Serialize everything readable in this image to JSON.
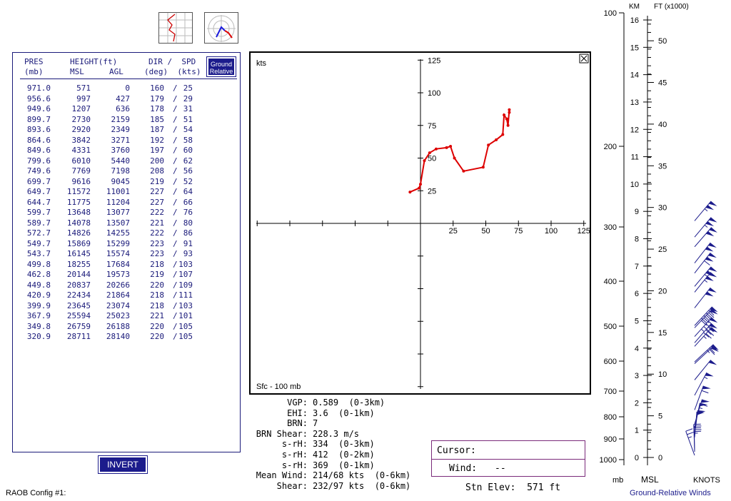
{
  "app": {
    "config_label": "RAOB Config #1:"
  },
  "toolbar": {
    "skewt_icon": "skewt-chart-icon",
    "hodograph_icon": "hodograph-icon"
  },
  "table": {
    "headers": {
      "pres": "PRES",
      "pres_unit": "(mb)",
      "height": "HEIGHT(ft)",
      "msl": "MSL",
      "agl": "AGL",
      "dir_spd": "DIR /  SPD",
      "dir_spd_unit": "(deg)  (kts)"
    },
    "ground_relative_button": "Ground Relative",
    "rows": [
      [
        "971.0",
        "571",
        "0",
        "160",
        "25"
      ],
      [
        "956.6",
        "997",
        "427",
        "179",
        "29"
      ],
      [
        "949.6",
        "1207",
        "636",
        "178",
        "31"
      ],
      [
        "899.7",
        "2730",
        "2159",
        "185",
        "51"
      ],
      [
        "893.6",
        "2920",
        "2349",
        "187",
        "54"
      ],
      [
        "864.6",
        "3842",
        "3271",
        "192",
        "58"
      ],
      [
        "849.6",
        "4331",
        "3760",
        "197",
        "60"
      ],
      [
        "799.6",
        "6010",
        "5440",
        "200",
        "62"
      ],
      [
        "749.6",
        "7769",
        "7198",
        "208",
        "56"
      ],
      [
        "699.7",
        "9616",
        "9045",
        "219",
        "52"
      ],
      [
        "649.7",
        "11572",
        "11001",
        "227",
        "64"
      ],
      [
        "644.7",
        "11775",
        "11204",
        "227",
        "66"
      ],
      [
        "599.7",
        "13648",
        "13077",
        "222",
        "76"
      ],
      [
        "589.7",
        "14078",
        "13507",
        "221",
        "80"
      ],
      [
        "572.7",
        "14826",
        "14255",
        "222",
        "86"
      ],
      [
        "549.7",
        "15869",
        "15299",
        "223",
        "91"
      ],
      [
        "543.7",
        "16145",
        "15574",
        "223",
        "93"
      ],
      [
        "499.8",
        "18255",
        "17684",
        "218",
        "103"
      ],
      [
        "462.8",
        "20144",
        "19573",
        "219",
        "107"
      ],
      [
        "449.8",
        "20837",
        "20266",
        "220",
        "109"
      ],
      [
        "420.9",
        "22434",
        "21864",
        "218",
        "111"
      ],
      [
        "399.9",
        "23645",
        "23074",
        "218",
        "103"
      ],
      [
        "367.9",
        "25594",
        "25023",
        "221",
        "101"
      ],
      [
        "349.8",
        "26759",
        "26188",
        "220",
        "105"
      ],
      [
        "320.9",
        "28711",
        "28140",
        "220",
        "105"
      ]
    ],
    "invert_button": "INVERT"
  },
  "hodograph": {
    "unit_label": "kts",
    "range_label": "Sfc - 100 mb",
    "ticks": [
      "25",
      "50",
      "75",
      "100",
      "125"
    ],
    "line_color": "#dd0000",
    "trace": [
      [
        -8,
        24
      ],
      [
        -1,
        27
      ],
      [
        0,
        30
      ],
      [
        3,
        48
      ],
      [
        7,
        54
      ],
      [
        12,
        57
      ],
      [
        20,
        58
      ],
      [
        23,
        59
      ],
      [
        26,
        50
      ],
      [
        33,
        40
      ],
      [
        48,
        43
      ],
      [
        52,
        60
      ],
      [
        58,
        64
      ],
      [
        63,
        68
      ],
      [
        64,
        83
      ],
      [
        66,
        80
      ],
      [
        67,
        75
      ],
      [
        68,
        87
      ],
      [
        68,
        85
      ]
    ]
  },
  "parameters": [
    {
      "label": "VGP:",
      "value": "0.589  (0-3km)"
    },
    {
      "label": "EHI:",
      "value": "3.6  (0-1km)"
    },
    {
      "label": "BRN:",
      "value": "7"
    },
    {
      "label": "BRN Shear:",
      "value": "228.3 m/s"
    },
    {
      "label": "s-rH:",
      "value": "334  (0-3km)"
    },
    {
      "label": "s-rH:",
      "value": "412  (0-2km)"
    },
    {
      "label": "s-rH:",
      "value": "369  (0-1km)"
    },
    {
      "label": "Mean Wind:",
      "value": "214/68 kts  (0-6km)"
    },
    {
      "label": "Shear:",
      "value": "232/97 kts  (0-6km)"
    }
  ],
  "cursor": {
    "label": "Cursor:",
    "wind_label": "Wind:",
    "wind_value": "--"
  },
  "station": {
    "elev_text": "Stn Elev:  571 ft"
  },
  "profile": {
    "km_label": "KM",
    "ft_label": "FT (x1000)",
    "pressure_labels": [
      "100",
      "200",
      "300",
      "400",
      "500",
      "600",
      "700",
      "800",
      "900",
      "1000"
    ],
    "km_labels": [
      "16",
      "15",
      "14",
      "13",
      "12",
      "11",
      "10",
      "9",
      "8",
      "7",
      "6",
      "5",
      "4",
      "3",
      "2",
      "1",
      "0"
    ],
    "ft_labels": [
      "50",
      "45",
      "40",
      "35",
      "30",
      "25",
      "20",
      "15",
      "10",
      "5",
      "0"
    ],
    "mb_label": "mb",
    "msl_label": "MSL",
    "knots_label": "KNOTS",
    "footer": "Ground-Relative Winds",
    "barb_color": "#1c1c8c"
  }
}
